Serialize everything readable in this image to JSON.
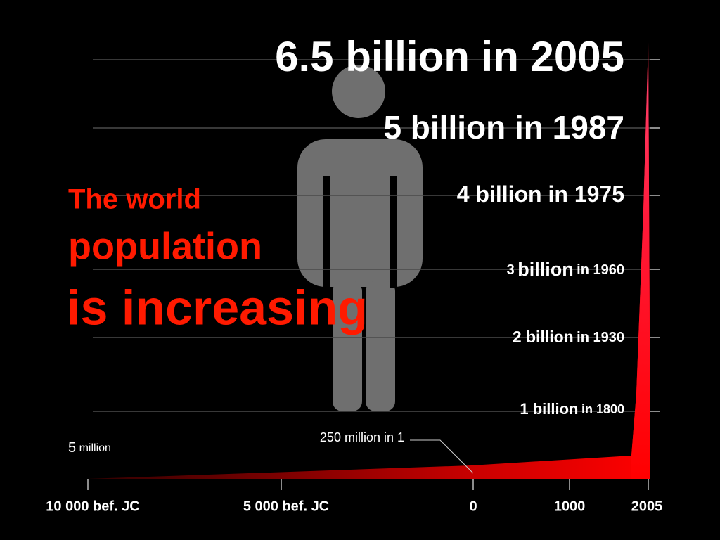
{
  "heading": [
    "The world",
    "population",
    "is increasing"
  ],
  "milestones": [
    [
      {
        "text": "6.5 billion in 2005"
      }
    ],
    [
      {
        "text": "5 billion in 1987"
      }
    ],
    [
      {
        "text": "4 billion in 1975"
      }
    ],
    [
      {
        "text": "3"
      },
      {
        "text": "billion"
      },
      {
        "text": "in 1960"
      }
    ],
    [
      {
        "text": "2 billion"
      },
      {
        "text": "in 1930"
      }
    ],
    [
      {
        "text": "1 billion"
      },
      {
        "text": "in 1800"
      }
    ]
  ],
  "start_label": [
    "5",
    "million"
  ],
  "annotation": "250 million in 1",
  "x_labels": [
    "10 000 bef. JC",
    "5 000 bef. JC",
    "0",
    "1000",
    "2005"
  ]
}
